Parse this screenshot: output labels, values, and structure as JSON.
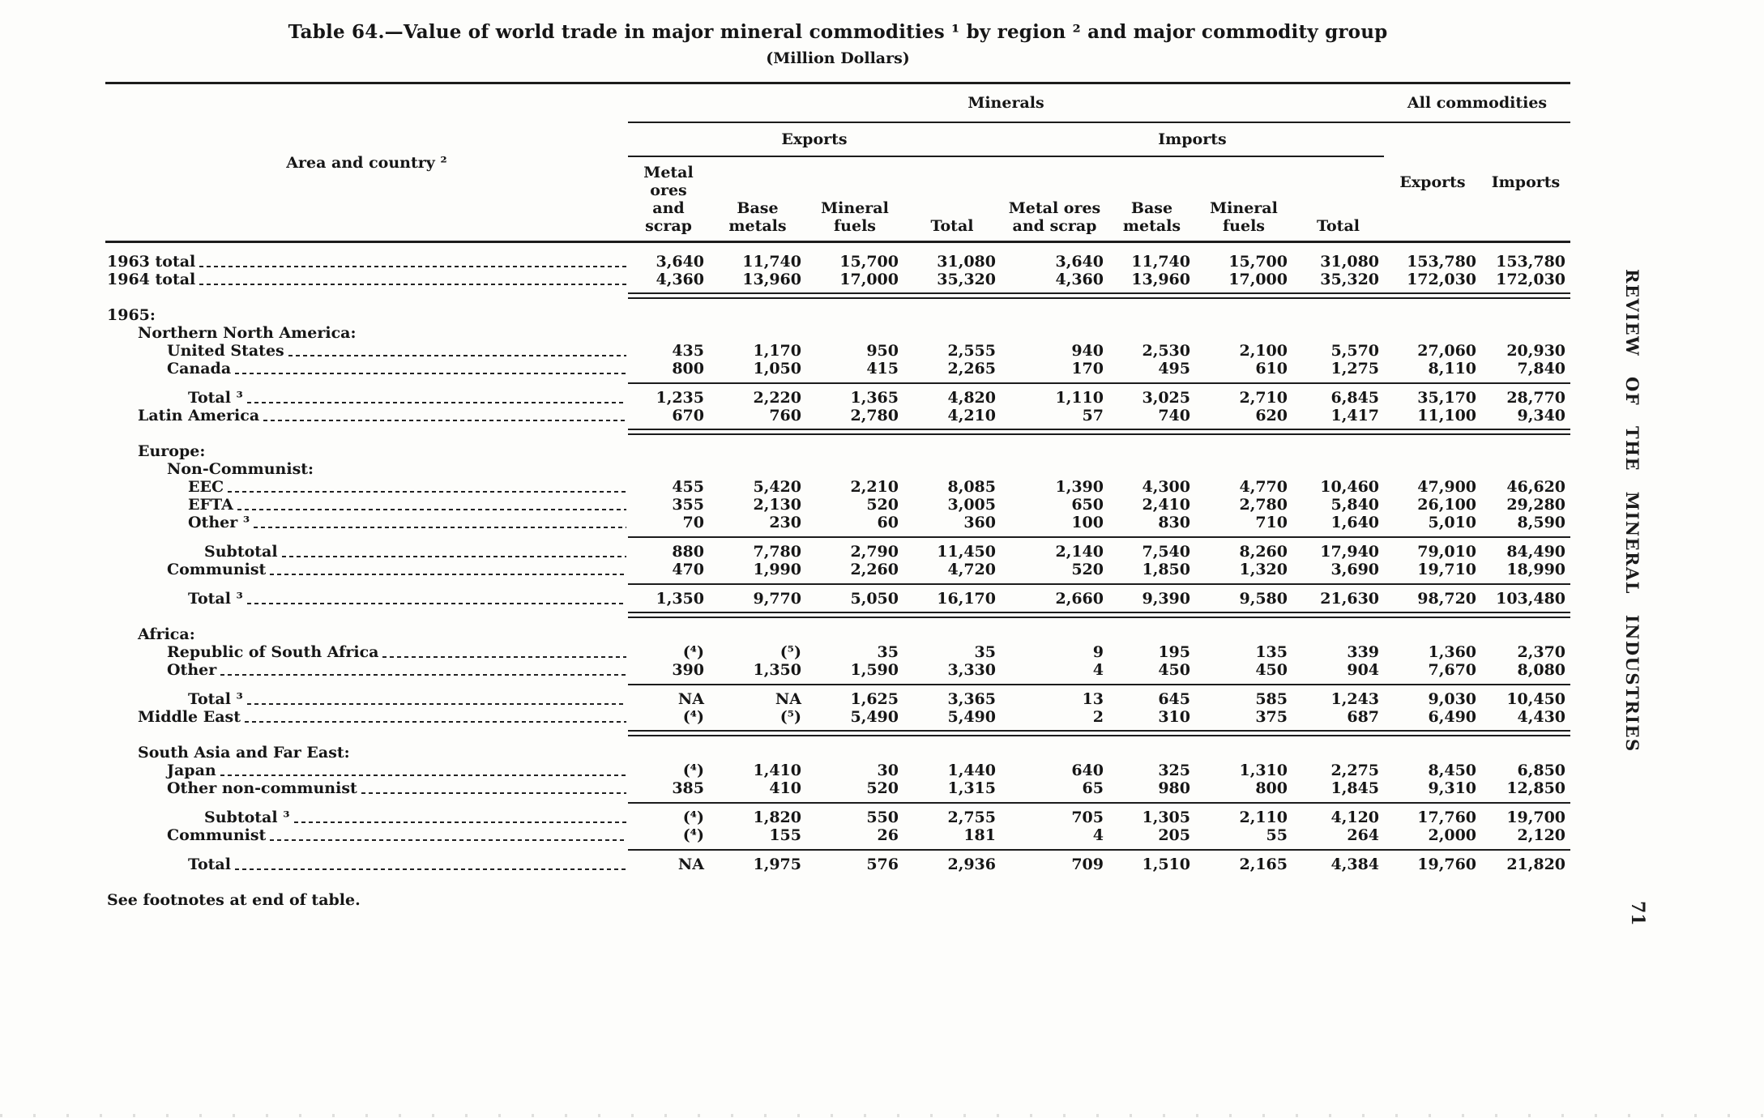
{
  "page": {
    "title": "Table 64.—Value of world trade in major mineral commodities ¹ by region ² and major commodity group",
    "subtitle": "(Million Dollars)",
    "footnote": "See footnotes at end of table.",
    "side_text": "REVIEW OF THE MINERAL INDUSTRIES",
    "page_number": "71"
  },
  "table": {
    "stub_header": "Area and country ²",
    "col_groups": {
      "minerals": "Minerals",
      "all_commodities": "All commodities",
      "exports": "Exports",
      "imports": "Imports"
    },
    "leaf_headers": [
      "Metal ores\nand scrap",
      "Base\nmetals",
      "Mineral\nfuels",
      "Total",
      "Metal ores\nand scrap",
      "Base\nmetals",
      "Mineral\nfuels",
      "Total",
      "Exports",
      "Imports"
    ],
    "rows": [
      {
        "type": "data",
        "label": "1963 total",
        "indent": 0,
        "leader": true,
        "values": [
          "3,640",
          "11,740",
          "15,700",
          "31,080",
          "3,640",
          "11,740",
          "15,700",
          "31,080",
          "153,780",
          "153,780"
        ]
      },
      {
        "type": "data",
        "label": "1964 total",
        "indent": 0,
        "leader": true,
        "values": [
          "4,360",
          "13,960",
          "17,000",
          "35,320",
          "4,360",
          "13,960",
          "17,000",
          "35,320",
          "172,030",
          "172,030"
        ]
      },
      {
        "type": "rule",
        "style": "double"
      },
      {
        "type": "section",
        "label": "1965:",
        "indent": 0
      },
      {
        "type": "section",
        "label": "Northern North America:",
        "indent": 1
      },
      {
        "type": "data",
        "label": "United States",
        "indent": 2,
        "leader": true,
        "values": [
          "435",
          "1,170",
          "950",
          "2,555",
          "940",
          "2,530",
          "2,100",
          "5,570",
          "27,060",
          "20,930"
        ]
      },
      {
        "type": "data",
        "label": "Canada",
        "indent": 2,
        "leader": true,
        "values": [
          "800",
          "1,050",
          "415",
          "2,265",
          "170",
          "495",
          "610",
          "1,275",
          "8,110",
          "7,840"
        ]
      },
      {
        "type": "rule",
        "style": "single"
      },
      {
        "type": "data",
        "label": "Total ³",
        "indent": 3,
        "leader": true,
        "values": [
          "1,235",
          "2,220",
          "1,365",
          "4,820",
          "1,110",
          "3,025",
          "2,710",
          "6,845",
          "35,170",
          "28,770"
        ]
      },
      {
        "type": "data",
        "label": "Latin America",
        "indent": 1,
        "leader": true,
        "values": [
          "670",
          "760",
          "2,780",
          "4,210",
          "57",
          "740",
          "620",
          "1,417",
          "11,100",
          "9,340"
        ]
      },
      {
        "type": "rule",
        "style": "double"
      },
      {
        "type": "section",
        "label": "Europe:",
        "indent": 1
      },
      {
        "type": "section",
        "label": "Non-Communist:",
        "indent": 2
      },
      {
        "type": "data",
        "label": "EEC",
        "indent": 3,
        "leader": true,
        "values": [
          "455",
          "5,420",
          "2,210",
          "8,085",
          "1,390",
          "4,300",
          "4,770",
          "10,460",
          "47,900",
          "46,620"
        ]
      },
      {
        "type": "data",
        "label": "EFTA",
        "indent": 3,
        "leader": true,
        "values": [
          "355",
          "2,130",
          "520",
          "3,005",
          "650",
          "2,410",
          "2,780",
          "5,840",
          "26,100",
          "29,280"
        ]
      },
      {
        "type": "data",
        "label": "Other ³",
        "indent": 3,
        "leader": true,
        "values": [
          "70",
          "230",
          "60",
          "360",
          "100",
          "830",
          "710",
          "1,640",
          "5,010",
          "8,590"
        ]
      },
      {
        "type": "rule",
        "style": "single"
      },
      {
        "type": "data",
        "label": "Subtotal",
        "indent": 4,
        "leader": true,
        "values": [
          "880",
          "7,780",
          "2,790",
          "11,450",
          "2,140",
          "7,540",
          "8,260",
          "17,940",
          "79,010",
          "84,490"
        ]
      },
      {
        "type": "data",
        "label": "Communist",
        "indent": 2,
        "leader": true,
        "values": [
          "470",
          "1,990",
          "2,260",
          "4,720",
          "520",
          "1,850",
          "1,320",
          "3,690",
          "19,710",
          "18,990"
        ]
      },
      {
        "type": "rule",
        "style": "single"
      },
      {
        "type": "data",
        "label": "Total ³",
        "indent": 3,
        "leader": true,
        "values": [
          "1,350",
          "9,770",
          "5,050",
          "16,170",
          "2,660",
          "9,390",
          "9,580",
          "21,630",
          "98,720",
          "103,480"
        ]
      },
      {
        "type": "rule",
        "style": "double"
      },
      {
        "type": "section",
        "label": "Africa:",
        "indent": 1
      },
      {
        "type": "data",
        "label": "Republic of South Africa",
        "indent": 2,
        "leader": true,
        "values": [
          "(⁴)",
          "(⁵)",
          "35",
          "35",
          "9",
          "195",
          "135",
          "339",
          "1,360",
          "2,370"
        ]
      },
      {
        "type": "data",
        "label": "Other",
        "indent": 2,
        "leader": true,
        "values": [
          "390",
          "1,350",
          "1,590",
          "3,330",
          "4",
          "450",
          "450",
          "904",
          "7,670",
          "8,080"
        ]
      },
      {
        "type": "rule",
        "style": "single"
      },
      {
        "type": "data",
        "label": "Total ³",
        "indent": 3,
        "leader": true,
        "values": [
          "NA",
          "NA",
          "1,625",
          "3,365",
          "13",
          "645",
          "585",
          "1,243",
          "9,030",
          "10,450"
        ]
      },
      {
        "type": "data",
        "label": "Middle East",
        "indent": 1,
        "leader": true,
        "values": [
          "(⁴)",
          "(⁵)",
          "5,490",
          "5,490",
          "2",
          "310",
          "375",
          "687",
          "6,490",
          "4,430"
        ]
      },
      {
        "type": "rule",
        "style": "double"
      },
      {
        "type": "section",
        "label": "South Asia and Far East:",
        "indent": 1
      },
      {
        "type": "data",
        "label": "Japan",
        "indent": 2,
        "leader": true,
        "values": [
          "(⁴)",
          "1,410",
          "30",
          "1,440",
          "640",
          "325",
          "1,310",
          "2,275",
          "8,450",
          "6,850"
        ]
      },
      {
        "type": "data",
        "label": "Other non-communist",
        "indent": 2,
        "leader": true,
        "values": [
          "385",
          "410",
          "520",
          "1,315",
          "65",
          "980",
          "800",
          "1,845",
          "9,310",
          "12,850"
        ]
      },
      {
        "type": "rule",
        "style": "single"
      },
      {
        "type": "data",
        "label": "Subtotal ³",
        "indent": 4,
        "leader": true,
        "values": [
          "(⁴)",
          "1,820",
          "550",
          "2,755",
          "705",
          "1,305",
          "2,110",
          "4,120",
          "17,760",
          "19,700"
        ]
      },
      {
        "type": "data",
        "label": "Communist",
        "indent": 2,
        "leader": true,
        "values": [
          "(⁴)",
          "155",
          "26",
          "181",
          "4",
          "205",
          "55",
          "264",
          "2,000",
          "2,120"
        ]
      },
      {
        "type": "rule",
        "style": "single"
      },
      {
        "type": "data",
        "label": "Total",
        "indent": 3,
        "leader": true,
        "values": [
          "NA",
          "1,975",
          "576",
          "2,936",
          "709",
          "1,510",
          "2,165",
          "4,384",
          "19,760",
          "21,820"
        ]
      }
    ]
  }
}
